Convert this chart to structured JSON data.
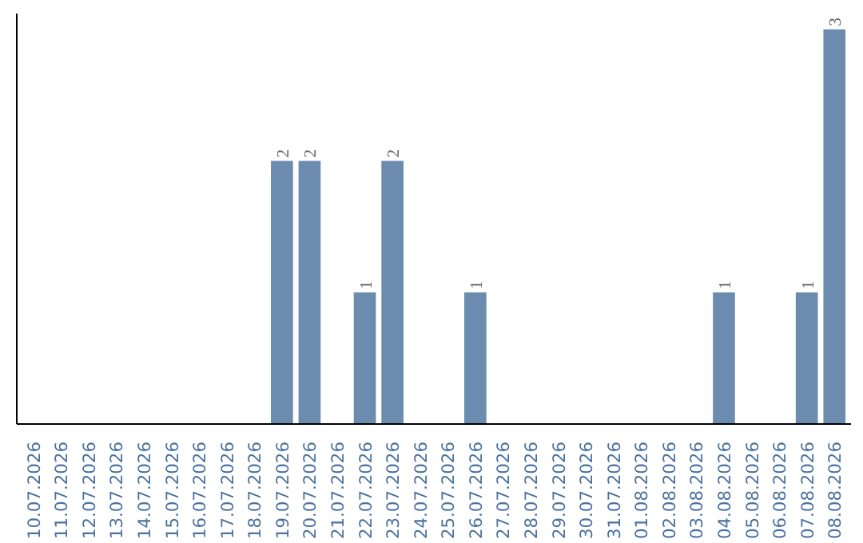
{
  "chart_data": {
    "type": "bar",
    "categories": [
      "10.07.2026",
      "11.07.2026",
      "12.07.2026",
      "13.07.2026",
      "14.07.2026",
      "15.07.2026",
      "16.07.2026",
      "17.07.2026",
      "18.07.2026",
      "19.07.2026",
      "20.07.2026",
      "21.07.2026",
      "22.07.2026",
      "23.07.2026",
      "24.07.2026",
      "25.07.2026",
      "26.07.2026",
      "27.07.2026",
      "28.07.2026",
      "29.07.2026",
      "30.07.2026",
      "31.07.2026",
      "01.08.2026",
      "02.08.2026",
      "03.08.2026",
      "04.08.2026",
      "05.08.2026",
      "06.08.2026",
      "07.08.2026",
      "08.08.2026"
    ],
    "values": [
      0,
      0,
      0,
      0,
      0,
      0,
      0,
      0,
      0,
      2,
      2,
      0,
      1,
      2,
      0,
      0,
      1,
      0,
      0,
      0,
      0,
      0,
      0,
      0,
      0,
      1,
      0,
      0,
      1,
      3
    ],
    "value_labels": [
      null,
      null,
      null,
      null,
      null,
      null,
      null,
      null,
      null,
      "2",
      "2",
      null,
      "1",
      "2",
      null,
      null,
      "1",
      null,
      null,
      null,
      null,
      null,
      null,
      null,
      null,
      "1",
      null,
      null,
      "1",
      "3"
    ],
    "color": "#6b8cae",
    "grid": false,
    "tick_labels": "x"
  }
}
